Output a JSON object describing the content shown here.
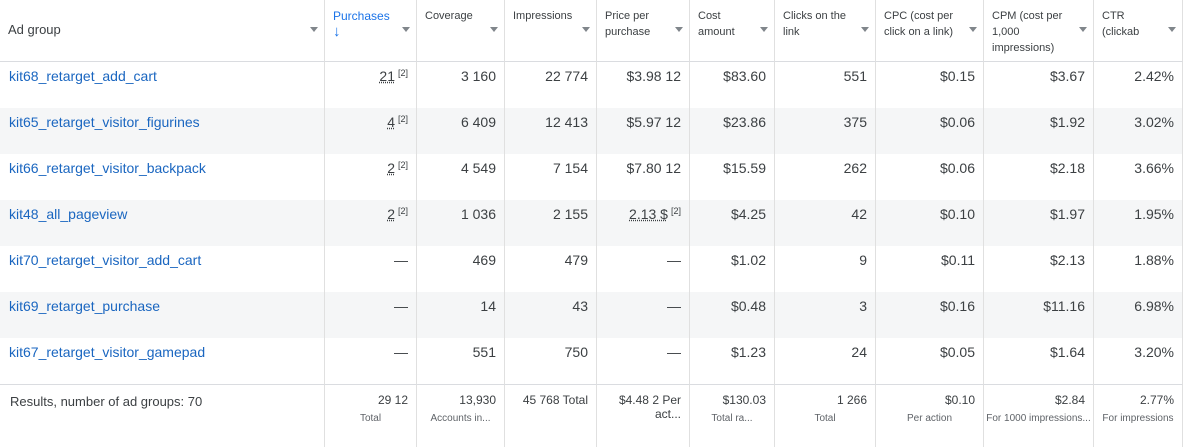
{
  "table": {
    "columns": [
      "Ad group",
      "Purchases",
      "Coverage",
      "Impressions",
      "Price per purchase",
      "Cost amount",
      "Clicks on the link",
      "CPC (cost per click on a link)",
      "CPM (cost per 1,000 impressions)",
      "CTR (clickab"
    ],
    "rows": [
      {
        "name": "kit68_retarget_add_cart",
        "cells": [
          {
            "text": "21",
            "note": "[2]"
          },
          "3 160",
          "22 774",
          "$3.98 12",
          "$83.60",
          "551",
          "$0.15",
          "$3.67",
          "2.42%"
        ]
      },
      {
        "name": "kit65_retarget_visitor_figurines",
        "cells": [
          {
            "text": "4",
            "note": "[2]"
          },
          "6 409",
          "12 413",
          "$5.97 12",
          "$23.86",
          "375",
          "$0.06",
          "$1.92",
          "3.02%"
        ]
      },
      {
        "name": "kit66_retarget_visitor_backpack",
        "cells": [
          {
            "text": "2",
            "note": "[2]"
          },
          "4 549",
          "7 154",
          "$7.80 12",
          "$15.59",
          "262",
          "$0.06",
          "$2.18",
          "3.66%"
        ]
      },
      {
        "name": "kit48_all_pageview",
        "cells": [
          {
            "text": "2",
            "note": "[2]"
          },
          "1 036",
          "2 155",
          {
            "text": "2.13 $",
            "note": "[2]"
          },
          "$4.25",
          "42",
          "$0.10",
          "$1.97",
          "1.95%"
        ]
      },
      {
        "name": "kit70_retarget_visitor_add_cart",
        "cells": [
          "—",
          "469",
          "479",
          "—",
          "$1.02",
          "9",
          "$0.11",
          "$2.13",
          "1.88%"
        ]
      },
      {
        "name": "kit69_retarget_purchase",
        "cells": [
          "—",
          "14",
          "43",
          "—",
          "$0.48",
          "3",
          "$0.16",
          "$11.16",
          "6.98%"
        ]
      },
      {
        "name": "kit67_retarget_visitor_gamepad",
        "cells": [
          "—",
          "551",
          "750",
          "—",
          "$1.23",
          "24",
          "$0.05",
          "$1.64",
          "3.20%"
        ]
      }
    ],
    "footer": {
      "label": "Results, number of ad groups: 70",
      "cells": [
        {
          "text": "29 12",
          "sub": "Total"
        },
        {
          "text": "13,930",
          "sub": "Accounts in..."
        },
        {
          "text": "45 768 Total"
        },
        {
          "text": "$4.48 2 Per act..."
        },
        {
          "text": "$130.03",
          "sub": "Total ra..."
        },
        {
          "text": "1 266",
          "sub": "Total"
        },
        {
          "text": "$0.10",
          "sub": "Per action"
        },
        {
          "text": "$2.84",
          "sub": "For 1000 impressions..."
        },
        {
          "text": "2.77%",
          "sub": "For impressions"
        }
      ]
    }
  }
}
